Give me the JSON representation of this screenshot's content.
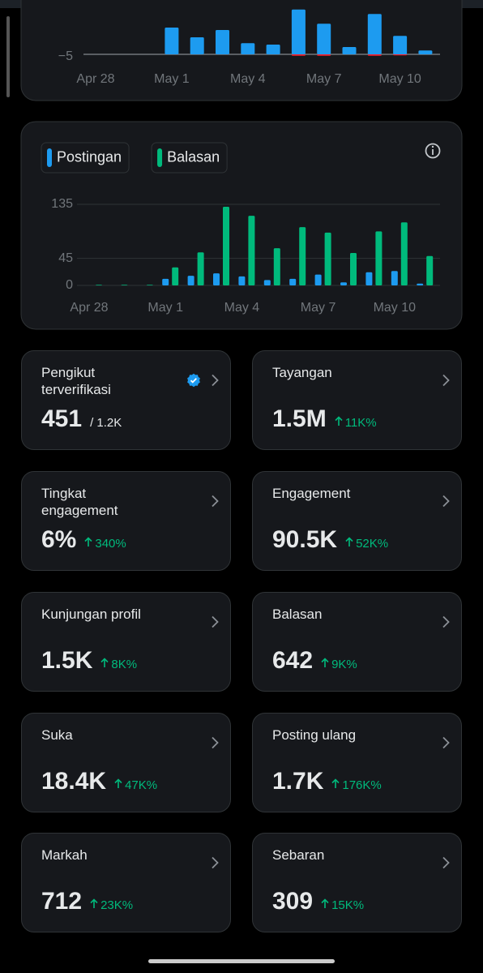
{
  "chart_data": [
    {
      "type": "bar",
      "categories": [
        "Apr 28",
        null,
        null,
        "May 1",
        null,
        null,
        "May 4",
        null,
        null,
        "May 7",
        null,
        null,
        "May 10",
        null
      ],
      "series": [
        {
          "color": "#1d9bf0",
          "values": [
            0,
            0,
            0,
            55,
            35,
            50,
            23,
            20,
            92,
            63,
            15,
            83,
            38,
            8
          ]
        },
        {
          "color": "#f4212e",
          "values": [
            0,
            0,
            0,
            0,
            0,
            0,
            0,
            0,
            -3,
            -3,
            0,
            -3,
            -2,
            0
          ]
        }
      ],
      "ylim": [
        -8,
        100
      ],
      "yticks": [
        {
          "value": -5,
          "label": "−5"
        }
      ],
      "grid": false
    },
    {
      "type": "bar",
      "categories": [
        "Apr 28",
        null,
        null,
        "May 1",
        null,
        null,
        "May 4",
        null,
        null,
        "May 7",
        null,
        null,
        "May 10",
        null
      ],
      "series": [
        {
          "name": "Postingan",
          "color": "#1d9bf0",
          "values": [
            0,
            0,
            0,
            11,
            16,
            20,
            15,
            9,
            11,
            18,
            5,
            22,
            24,
            3
          ]
        },
        {
          "name": "Balasan",
          "color": "#00ba7c",
          "values": [
            1,
            1,
            1,
            30,
            55,
            131,
            116,
            62,
            97,
            88,
            54,
            90,
            105,
            49
          ]
        }
      ],
      "ylim": [
        0,
        140
      ],
      "yticks": [
        0,
        45,
        135
      ],
      "grid": true
    }
  ],
  "cards": [
    {
      "label": "Pengikut terverifikasi",
      "value": "451",
      "total": "/ 1.2K"
    },
    {
      "label": "Tayangan",
      "value": "1.5M",
      "change": "11K%"
    },
    {
      "label": "Tingkat engagement",
      "value": "6%",
      "change": "340%"
    },
    {
      "label": "Engagement",
      "value": "90.5K",
      "change": "52K%"
    },
    {
      "label": "Kunjungan profil",
      "value": "1.5K",
      "change": "8K%"
    },
    {
      "label": "Balasan",
      "value": "642",
      "change": "9K%"
    },
    {
      "label": "Suka",
      "value": "18.4K",
      "change": "47K%"
    },
    {
      "label": "Posting ulang",
      "value": "1.7K",
      "change": "176K%"
    },
    {
      "label": "Markah",
      "value": "712",
      "change": "23K%"
    },
    {
      "label": "Sebaran",
      "value": "309",
      "change": "15K%"
    }
  ]
}
